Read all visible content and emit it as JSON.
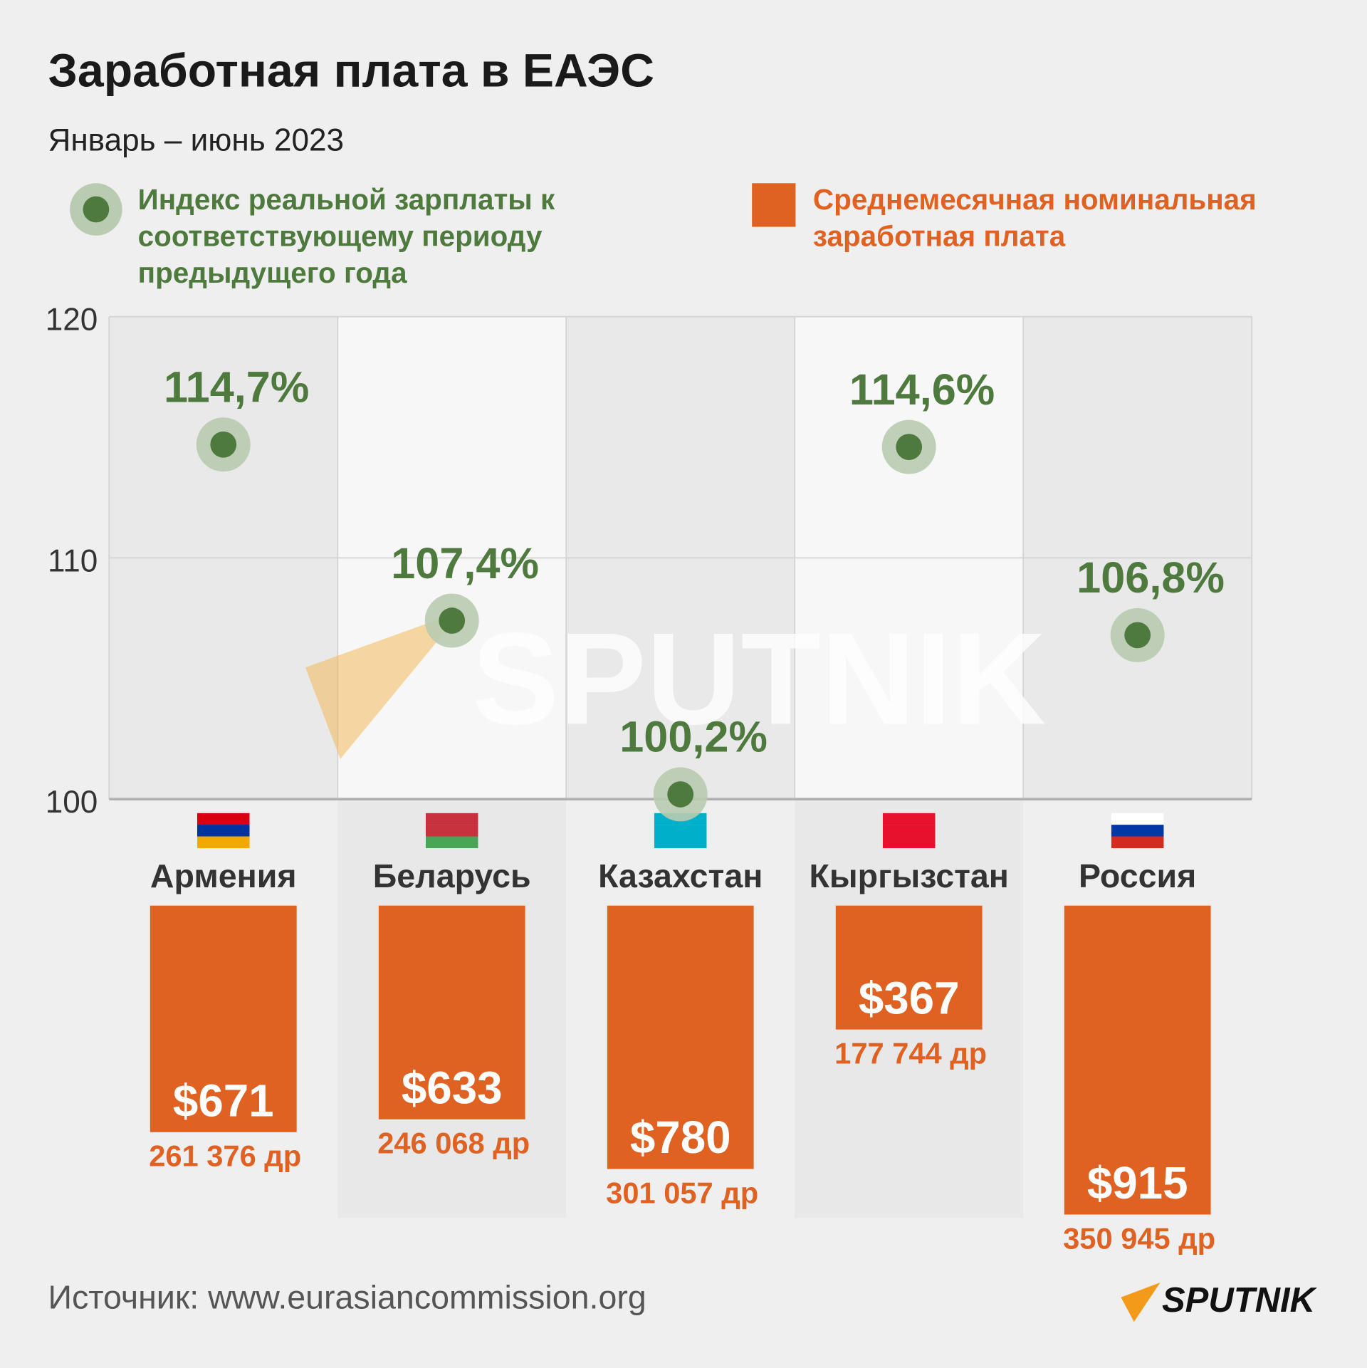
{
  "chart_data": {
    "type": "dot-bar",
    "title": "Заработная плата в ЕАЭС",
    "subtitle": "Январь – июнь 2023",
    "source": "Источник: www.eurasiancommission.org",
    "logo": "SPUTNIK",
    "categories": [
      "Армения",
      "Беларусь",
      "Казахстан",
      "Кыргызстан",
      "Россия"
    ],
    "ylim": [
      100,
      120
    ],
    "yticks": [
      100,
      110,
      120
    ],
    "grid": true,
    "series": [
      {
        "name": "Индекс реальной зарплаты к соответствующему периоду предыдущего года",
        "type": "dot",
        "color": "#4e7a3e",
        "values": [
          114.7,
          107.4,
          100.2,
          114.6,
          106.8
        ],
        "value_labels": [
          "114,7%",
          "107,4%",
          "100,2%",
          "114,6%",
          "106,8%"
        ]
      },
      {
        "name": "Среднемесячная номинальная заработная плата",
        "type": "bar",
        "color": "#e06222",
        "values": [
          671,
          633,
          780,
          367,
          915
        ],
        "value_labels": [
          "$671",
          "$633",
          "$780",
          "$367",
          "$915"
        ],
        "local_values": [
          261376,
          246068,
          301057,
          177744,
          350945
        ],
        "local_value_labels": [
          "261 376 др",
          "246 068 др",
          "301 057 др",
          "177 744 др",
          "350 945 др"
        ]
      }
    ]
  }
}
